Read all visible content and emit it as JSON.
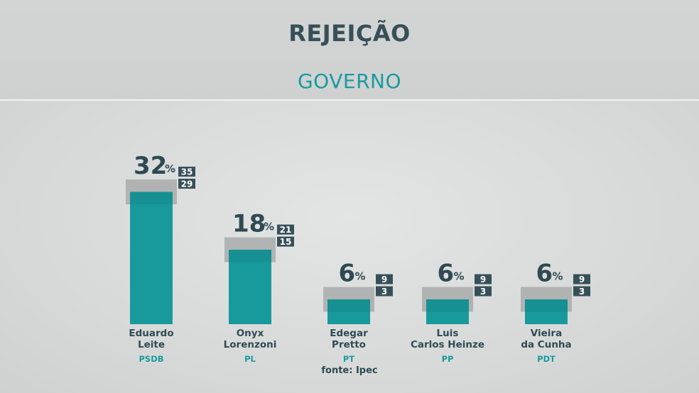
{
  "header": {
    "title": "REJEIÇÃO",
    "subtitle": "GOVERNO"
  },
  "source": "fonte: Ipec",
  "colors": {
    "bar": "#189a9c",
    "bar_dark": "#137d80",
    "margin_band": "#a9abab",
    "box": "#375058",
    "text_dark": "#2f4a52",
    "party": "#1a9b9f"
  },
  "chart_data": {
    "type": "bar",
    "title": "REJEIÇÃO",
    "subtitle": "GOVERNO",
    "unit": "%",
    "categories": [
      {
        "name_lines": [
          "Eduardo",
          "Leite"
        ],
        "party": "PSDB"
      },
      {
        "name_lines": [
          "Onyx",
          "Lorenzoni"
        ],
        "party": "PL"
      },
      {
        "name_lines": [
          "Edegar",
          "Pretto"
        ],
        "party": "PT"
      },
      {
        "name_lines": [
          "Luis",
          "Carlos Heinze"
        ],
        "party": "PP"
      },
      {
        "name_lines": [
          "Vieira",
          "da Cunha"
        ],
        "party": "PDT"
      }
    ],
    "values": [
      32,
      18,
      6,
      6,
      6
    ],
    "upper": [
      35,
      21,
      9,
      9,
      9
    ],
    "lower": [
      29,
      15,
      3,
      3,
      3
    ],
    "ylim": [
      0,
      35
    ]
  }
}
